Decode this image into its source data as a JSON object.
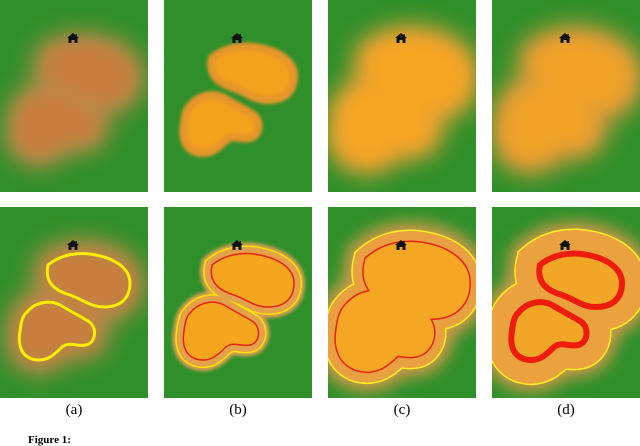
{
  "figure": {
    "panel_labels": [
      "(a)",
      "(b)",
      "(c)",
      "(d)"
    ],
    "caption_label": "Figure 1:"
  }
}
